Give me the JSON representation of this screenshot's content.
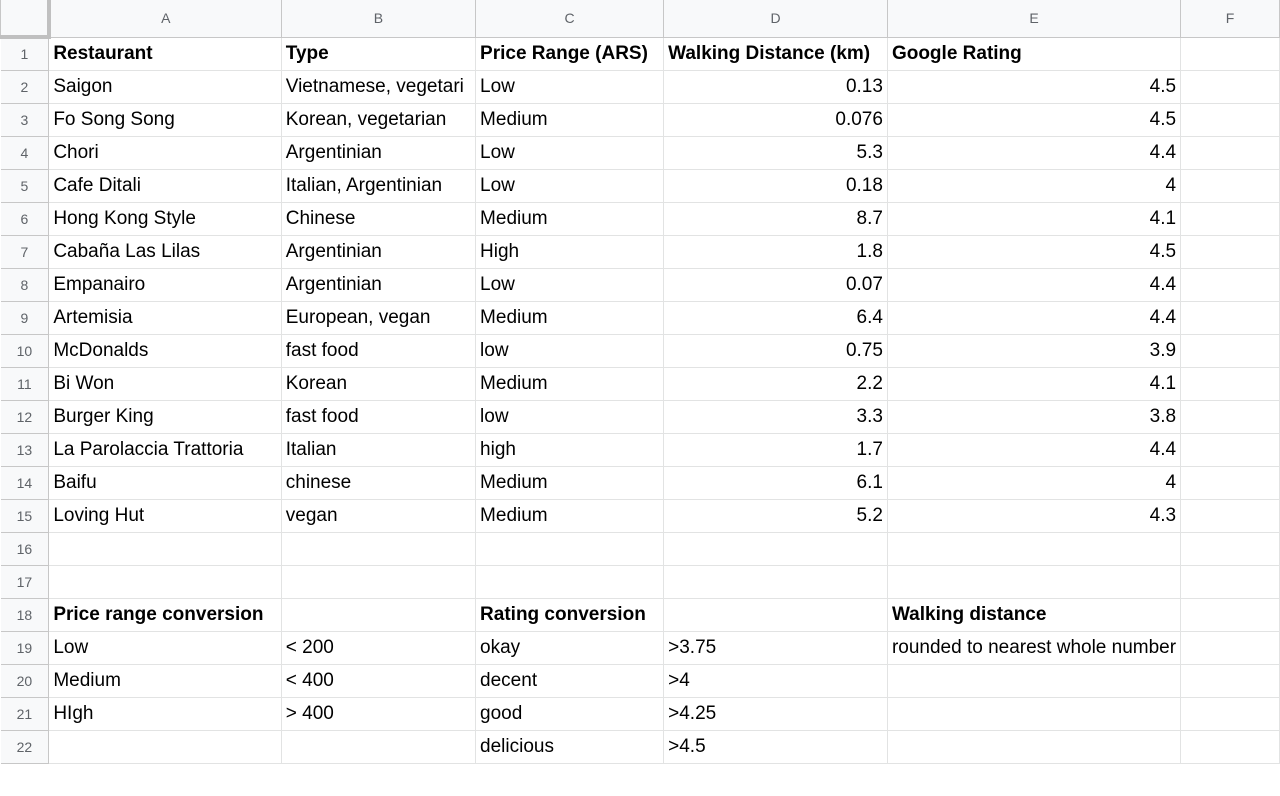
{
  "columns": [
    "A",
    "B",
    "C",
    "D",
    "E",
    "F"
  ],
  "rows": [
    {
      "n": "1",
      "cells": [
        {
          "t": "Restaurant",
          "s": "b"
        },
        {
          "t": "Type",
          "s": "b"
        },
        {
          "t": "Price Range (ARS)",
          "s": "b"
        },
        {
          "t": "Walking Distance (km)",
          "s": "b"
        },
        {
          "t": "Google Rating",
          "s": "b"
        },
        {
          "t": ""
        }
      ]
    },
    {
      "n": "2",
      "cells": [
        {
          "t": "Saigon"
        },
        {
          "t": "Vietnamese, vegetari"
        },
        {
          "t": "Low"
        },
        {
          "t": "0.13",
          "s": "n"
        },
        {
          "t": "4.5",
          "s": "n"
        },
        {
          "t": ""
        }
      ]
    },
    {
      "n": "3",
      "cells": [
        {
          "t": "Fo Song Song"
        },
        {
          "t": "Korean, vegetarian"
        },
        {
          "t": "Medium"
        },
        {
          "t": "0.076",
          "s": "n"
        },
        {
          "t": "4.5",
          "s": "n"
        },
        {
          "t": ""
        }
      ]
    },
    {
      "n": "4",
      "cells": [
        {
          "t": "Chori"
        },
        {
          "t": "Argentinian"
        },
        {
          "t": "Low"
        },
        {
          "t": "5.3",
          "s": "n"
        },
        {
          "t": "4.4",
          "s": "n"
        },
        {
          "t": ""
        }
      ]
    },
    {
      "n": "5",
      "cells": [
        {
          "t": "Cafe Ditali"
        },
        {
          "t": "Italian, Argentinian"
        },
        {
          "t": "Low"
        },
        {
          "t": "0.18",
          "s": "n"
        },
        {
          "t": "4",
          "s": "n"
        },
        {
          "t": ""
        }
      ]
    },
    {
      "n": "6",
      "cells": [
        {
          "t": "Hong Kong Style"
        },
        {
          "t": "Chinese"
        },
        {
          "t": "Medium"
        },
        {
          "t": "8.7",
          "s": "n"
        },
        {
          "t": "4.1",
          "s": "n"
        },
        {
          "t": ""
        }
      ]
    },
    {
      "n": "7",
      "cells": [
        {
          "t": "Cabaña Las Lilas"
        },
        {
          "t": "Argentinian"
        },
        {
          "t": "High"
        },
        {
          "t": "1.8",
          "s": "n"
        },
        {
          "t": "4.5",
          "s": "n"
        },
        {
          "t": ""
        }
      ]
    },
    {
      "n": "8",
      "cells": [
        {
          "t": "Empanairo"
        },
        {
          "t": "Argentinian"
        },
        {
          "t": "Low"
        },
        {
          "t": "0.07",
          "s": "n"
        },
        {
          "t": "4.4",
          "s": "n"
        },
        {
          "t": ""
        }
      ]
    },
    {
      "n": "9",
      "cells": [
        {
          "t": "Artemisia"
        },
        {
          "t": "European, vegan"
        },
        {
          "t": "Medium"
        },
        {
          "t": "6.4",
          "s": "n"
        },
        {
          "t": "4.4",
          "s": "n"
        },
        {
          "t": ""
        }
      ]
    },
    {
      "n": "10",
      "cells": [
        {
          "t": "McDonalds"
        },
        {
          "t": "fast food"
        },
        {
          "t": "low"
        },
        {
          "t": "0.75",
          "s": "n"
        },
        {
          "t": "3.9",
          "s": "n"
        },
        {
          "t": ""
        }
      ]
    },
    {
      "n": "11",
      "cells": [
        {
          "t": "Bi Won"
        },
        {
          "t": "Korean"
        },
        {
          "t": "Medium"
        },
        {
          "t": "2.2",
          "s": "n"
        },
        {
          "t": "4.1",
          "s": "n"
        },
        {
          "t": ""
        }
      ]
    },
    {
      "n": "12",
      "cells": [
        {
          "t": "Burger King"
        },
        {
          "t": "fast food"
        },
        {
          "t": "low"
        },
        {
          "t": "3.3",
          "s": "n"
        },
        {
          "t": "3.8",
          "s": "n"
        },
        {
          "t": ""
        }
      ]
    },
    {
      "n": "13",
      "cells": [
        {
          "t": "La Parolaccia Trattoria"
        },
        {
          "t": "Italian"
        },
        {
          "t": "high"
        },
        {
          "t": "1.7",
          "s": "n"
        },
        {
          "t": "4.4",
          "s": "n"
        },
        {
          "t": ""
        }
      ]
    },
    {
      "n": "14",
      "cells": [
        {
          "t": "Baifu"
        },
        {
          "t": "chinese"
        },
        {
          "t": "Medium"
        },
        {
          "t": "6.1",
          "s": "n"
        },
        {
          "t": "4",
          "s": "n"
        },
        {
          "t": ""
        }
      ]
    },
    {
      "n": "15",
      "cells": [
        {
          "t": "Loving Hut"
        },
        {
          "t": "vegan"
        },
        {
          "t": "Medium"
        },
        {
          "t": "5.2",
          "s": "n"
        },
        {
          "t": "4.3",
          "s": "n"
        },
        {
          "t": ""
        }
      ]
    },
    {
      "n": "16",
      "cells": [
        {
          "t": ""
        },
        {
          "t": ""
        },
        {
          "t": ""
        },
        {
          "t": ""
        },
        {
          "t": ""
        },
        {
          "t": ""
        }
      ]
    },
    {
      "n": "17",
      "cells": [
        {
          "t": ""
        },
        {
          "t": ""
        },
        {
          "t": ""
        },
        {
          "t": ""
        },
        {
          "t": ""
        },
        {
          "t": ""
        }
      ]
    },
    {
      "n": "18",
      "cells": [
        {
          "t": "Price range conversion",
          "s": "b"
        },
        {
          "t": ""
        },
        {
          "t": "Rating conversion",
          "s": "b"
        },
        {
          "t": ""
        },
        {
          "t": "Walking distance",
          "s": "b ovf"
        },
        {
          "t": ""
        }
      ]
    },
    {
      "n": "19",
      "cells": [
        {
          "t": "Low"
        },
        {
          "t": "< 200"
        },
        {
          "t": "okay"
        },
        {
          "t": ">3.75"
        },
        {
          "t": "rounded to nearest whole number",
          "s": "ovf"
        },
        {
          "t": ""
        }
      ]
    },
    {
      "n": "20",
      "cells": [
        {
          "t": "Medium"
        },
        {
          "t": "< 400"
        },
        {
          "t": "decent"
        },
        {
          "t": ">4"
        },
        {
          "t": ""
        },
        {
          "t": ""
        }
      ]
    },
    {
      "n": "21",
      "cells": [
        {
          "t": "HIgh"
        },
        {
          "t": "> 400"
        },
        {
          "t": "good"
        },
        {
          "t": ">4.25"
        },
        {
          "t": ""
        },
        {
          "t": ""
        }
      ]
    },
    {
      "n": "22",
      "cells": [
        {
          "t": ""
        },
        {
          "t": ""
        },
        {
          "t": "delicious"
        },
        {
          "t": ">4.5"
        },
        {
          "t": ""
        },
        {
          "t": ""
        }
      ]
    }
  ]
}
